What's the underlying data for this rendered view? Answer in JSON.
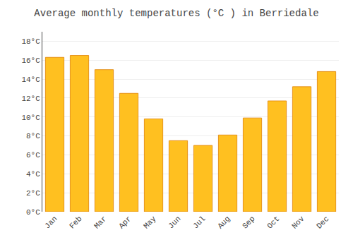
{
  "chart_data": {
    "type": "bar",
    "title": "Average monthly temperatures (°C ) in Berriedale",
    "categories": [
      "Jan",
      "Feb",
      "Mar",
      "Apr",
      "May",
      "Jun",
      "Jul",
      "Aug",
      "Sep",
      "Oct",
      "Nov",
      "Dec"
    ],
    "values": [
      16.3,
      16.5,
      15.0,
      12.5,
      9.8,
      7.5,
      7.0,
      8.1,
      9.9,
      11.7,
      13.2,
      14.8
    ],
    "color": "#FFC020",
    "ylim": [
      0,
      19
    ],
    "yticks": [
      {
        "value": 0,
        "label": "0°C"
      },
      {
        "value": 2,
        "label": "2°C"
      },
      {
        "value": 4,
        "label": "4°C"
      },
      {
        "value": 6,
        "label": "6°C"
      },
      {
        "value": 8,
        "label": "8°C"
      },
      {
        "value": 10,
        "label": "10°C"
      },
      {
        "value": 12,
        "label": "12°C"
      },
      {
        "value": 14,
        "label": "14°C"
      },
      {
        "value": 16,
        "label": "16°C"
      },
      {
        "value": 18,
        "label": "18°C"
      }
    ],
    "grid": true
  }
}
